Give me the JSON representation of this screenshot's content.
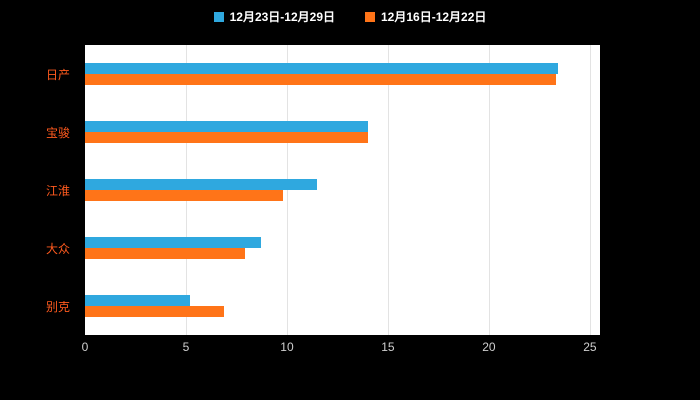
{
  "legend": [
    {
      "label": "12月23日-12月29日",
      "color": "#2FA8DF"
    },
    {
      "label": "12月16日-12月22日",
      "color": "#FF7418"
    }
  ],
  "chart_data": {
    "type": "bar",
    "orientation": "horizontal",
    "title": "",
    "xlabel": "",
    "ylabel": "",
    "categories": [
      "日产",
      "宝骏",
      "江淮",
      "大众",
      "别克"
    ],
    "series": [
      {
        "name": "12月23日-12月29日",
        "color": "#2FA8DF",
        "values": [
          23.4,
          14.0,
          11.5,
          8.7,
          5.2
        ]
      },
      {
        "name": "12月16日-12月22日",
        "color": "#FF7418",
        "values": [
          23.3,
          14.0,
          9.8,
          7.9,
          6.9
        ]
      }
    ],
    "xticks": [
      0,
      5,
      10,
      15,
      20,
      25
    ],
    "xlim": [
      0,
      25.5
    ],
    "grid": true,
    "legend_position": "top"
  },
  "colors": {
    "background": "#000000",
    "plot_background": "#FFFFFF",
    "grid": "#E3E3E3",
    "category_label": "#FF5A1E",
    "tick_label": "#CFCFCF",
    "legend_text": "#FFFFFF"
  }
}
